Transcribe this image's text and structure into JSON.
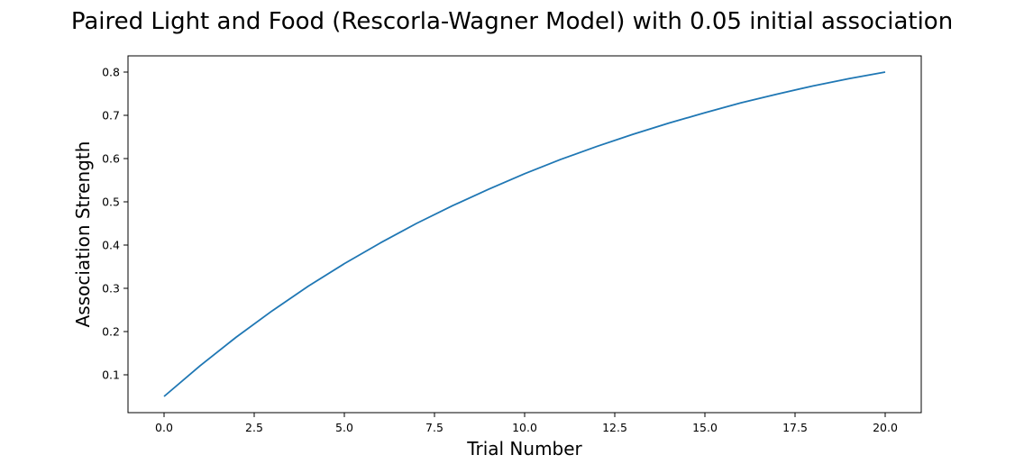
{
  "chart_data": {
    "type": "line",
    "title": "Paired Light and Food (Rescorla-Wagner Model) with 0.05 initial association",
    "xlabel": "Trial Number",
    "ylabel": "Association Strength",
    "xlim": [
      -1.0,
      21.0
    ],
    "ylim": [
      0.0125,
      0.8375
    ],
    "x_ticks": [
      0.0,
      2.5,
      5.0,
      7.5,
      10.0,
      12.5,
      15.0,
      17.5,
      20.0
    ],
    "x_tick_labels": [
      "0.0",
      "2.5",
      "5.0",
      "7.5",
      "10.0",
      "12.5",
      "15.0",
      "17.5",
      "20.0"
    ],
    "y_ticks": [
      0.1,
      0.2,
      0.3,
      0.4,
      0.5,
      0.6,
      0.7,
      0.8
    ],
    "y_tick_labels": [
      "0.1",
      "0.2",
      "0.3",
      "0.4",
      "0.5",
      "0.6",
      "0.7",
      "0.8"
    ],
    "grid": false,
    "legend": "none",
    "series": [
      {
        "color": "#1f77b4",
        "x": [
          0,
          1,
          2,
          3,
          4,
          5,
          6,
          7,
          8,
          9,
          10,
          11,
          12,
          13,
          14,
          15,
          16,
          17,
          18,
          19,
          20
        ],
        "y": [
          0.05,
          0.121,
          0.187,
          0.248,
          0.305,
          0.357,
          0.405,
          0.45,
          0.491,
          0.529,
          0.565,
          0.598,
          0.628,
          0.656,
          0.682,
          0.706,
          0.729,
          0.749,
          0.768,
          0.785,
          0.8
        ]
      }
    ]
  }
}
